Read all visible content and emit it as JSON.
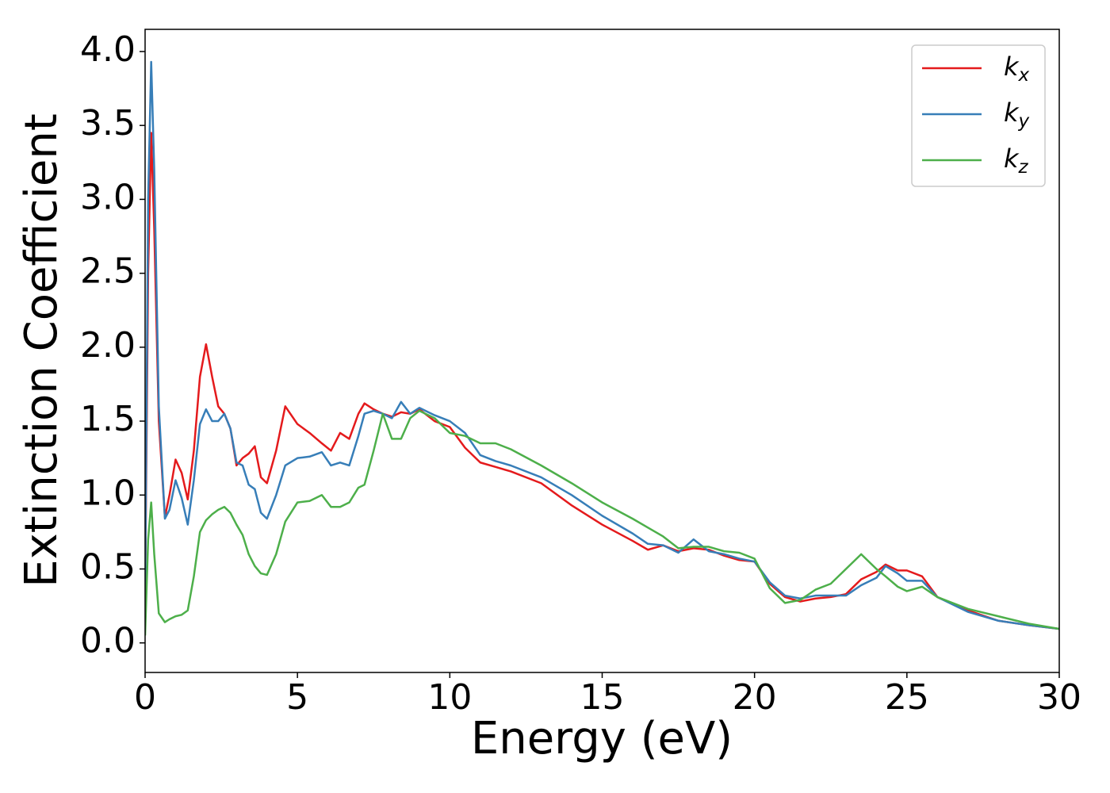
{
  "chart_data": {
    "type": "line",
    "xlabel": "Energy (eV)",
    "ylabel": "Extinction Coefficient",
    "x": [
      0,
      0.1,
      0.2,
      0.3,
      0.45,
      0.65,
      0.8,
      1.0,
      1.2,
      1.4,
      1.6,
      1.8,
      2.0,
      2.2,
      2.4,
      2.6,
      2.8,
      3.0,
      3.2,
      3.4,
      3.6,
      3.8,
      4.0,
      4.3,
      4.6,
      5.0,
      5.4,
      5.8,
      6.1,
      6.4,
      6.7,
      7.0,
      7.2,
      7.5,
      7.8,
      8.1,
      8.4,
      8.7,
      9.0,
      9.5,
      10.0,
      10.5,
      11.0,
      11.5,
      12,
      13,
      14,
      15,
      16,
      16.5,
      17,
      17.5,
      18,
      18.5,
      19,
      19.5,
      20,
      20.5,
      21,
      21.5,
      22,
      22.5,
      23,
      23.5,
      24,
      24.3,
      24.7,
      25,
      25.5,
      26,
      27,
      28,
      29,
      30
    ],
    "series": [
      {
        "name": "kx",
        "color": "#e41a1c",
        "values": [
          0.3,
          2.5,
          3.45,
          2.8,
          1.5,
          0.85,
          1.0,
          1.24,
          1.15,
          0.97,
          1.3,
          1.8,
          2.02,
          1.8,
          1.6,
          1.55,
          1.45,
          1.2,
          1.25,
          1.28,
          1.33,
          1.12,
          1.08,
          1.3,
          1.6,
          1.48,
          1.42,
          1.35,
          1.3,
          1.42,
          1.38,
          1.55,
          1.62,
          1.58,
          1.55,
          1.53,
          1.56,
          1.55,
          1.58,
          1.5,
          1.46,
          1.32,
          1.22,
          1.19,
          1.16,
          1.08,
          0.93,
          0.8,
          0.69,
          0.63,
          0.66,
          0.62,
          0.64,
          0.63,
          0.59,
          0.56,
          0.55,
          0.4,
          0.31,
          0.28,
          0.3,
          0.31,
          0.33,
          0.43,
          0.48,
          0.53,
          0.49,
          0.49,
          0.45,
          0.31,
          0.22,
          0.15,
          0.12,
          0.095
        ]
      },
      {
        "name": "ky",
        "color": "#377eb8",
        "values": [
          0.3,
          3.0,
          3.93,
          3.2,
          1.6,
          0.84,
          0.9,
          1.1,
          0.98,
          0.8,
          1.1,
          1.48,
          1.58,
          1.5,
          1.5,
          1.55,
          1.45,
          1.22,
          1.2,
          1.07,
          1.04,
          0.88,
          0.84,
          1.0,
          1.2,
          1.25,
          1.26,
          1.29,
          1.2,
          1.22,
          1.2,
          1.4,
          1.55,
          1.57,
          1.55,
          1.52,
          1.63,
          1.55,
          1.59,
          1.54,
          1.5,
          1.42,
          1.27,
          1.23,
          1.2,
          1.12,
          1.0,
          0.86,
          0.74,
          0.67,
          0.66,
          0.61,
          0.7,
          0.62,
          0.6,
          0.57,
          0.55,
          0.41,
          0.32,
          0.3,
          0.32,
          0.32,
          0.32,
          0.39,
          0.44,
          0.52,
          0.47,
          0.42,
          0.42,
          0.31,
          0.21,
          0.15,
          0.12,
          0.095
        ]
      },
      {
        "name": "kz",
        "color": "#4daf4a",
        "values": [
          0.05,
          0.7,
          0.95,
          0.6,
          0.2,
          0.14,
          0.16,
          0.18,
          0.19,
          0.22,
          0.45,
          0.75,
          0.83,
          0.87,
          0.9,
          0.92,
          0.88,
          0.8,
          0.73,
          0.6,
          0.52,
          0.47,
          0.46,
          0.6,
          0.82,
          0.95,
          0.96,
          1.0,
          0.92,
          0.92,
          0.95,
          1.05,
          1.07,
          1.3,
          1.55,
          1.38,
          1.38,
          1.52,
          1.57,
          1.52,
          1.42,
          1.4,
          1.35,
          1.35,
          1.31,
          1.2,
          1.08,
          0.95,
          0.84,
          0.78,
          0.72,
          0.64,
          0.65,
          0.65,
          0.62,
          0.61,
          0.57,
          0.37,
          0.27,
          0.29,
          0.36,
          0.4,
          0.5,
          0.6,
          0.5,
          0.45,
          0.38,
          0.35,
          0.38,
          0.31,
          0.23,
          0.18,
          0.13,
          0.095
        ]
      }
    ],
    "xlim": [
      0,
      30
    ],
    "xticks": [
      0,
      5,
      10,
      15,
      20,
      25,
      30
    ],
    "ylim": [
      -0.2,
      4.15
    ],
    "yticks": [
      {
        "value": 0,
        "label": "0.0"
      },
      {
        "value": 0.5,
        "label": "0.5"
      },
      {
        "value": 1,
        "label": "1.0"
      },
      {
        "value": 1.5,
        "label": "1.5"
      },
      {
        "value": 2,
        "label": "2.0"
      },
      {
        "value": 2.5,
        "label": "2.5"
      },
      {
        "value": 3,
        "label": "3.0"
      },
      {
        "value": 3.5,
        "label": "3.5"
      },
      {
        "value": 4,
        "label": "4.0"
      }
    ],
    "legend": "upper right"
  }
}
